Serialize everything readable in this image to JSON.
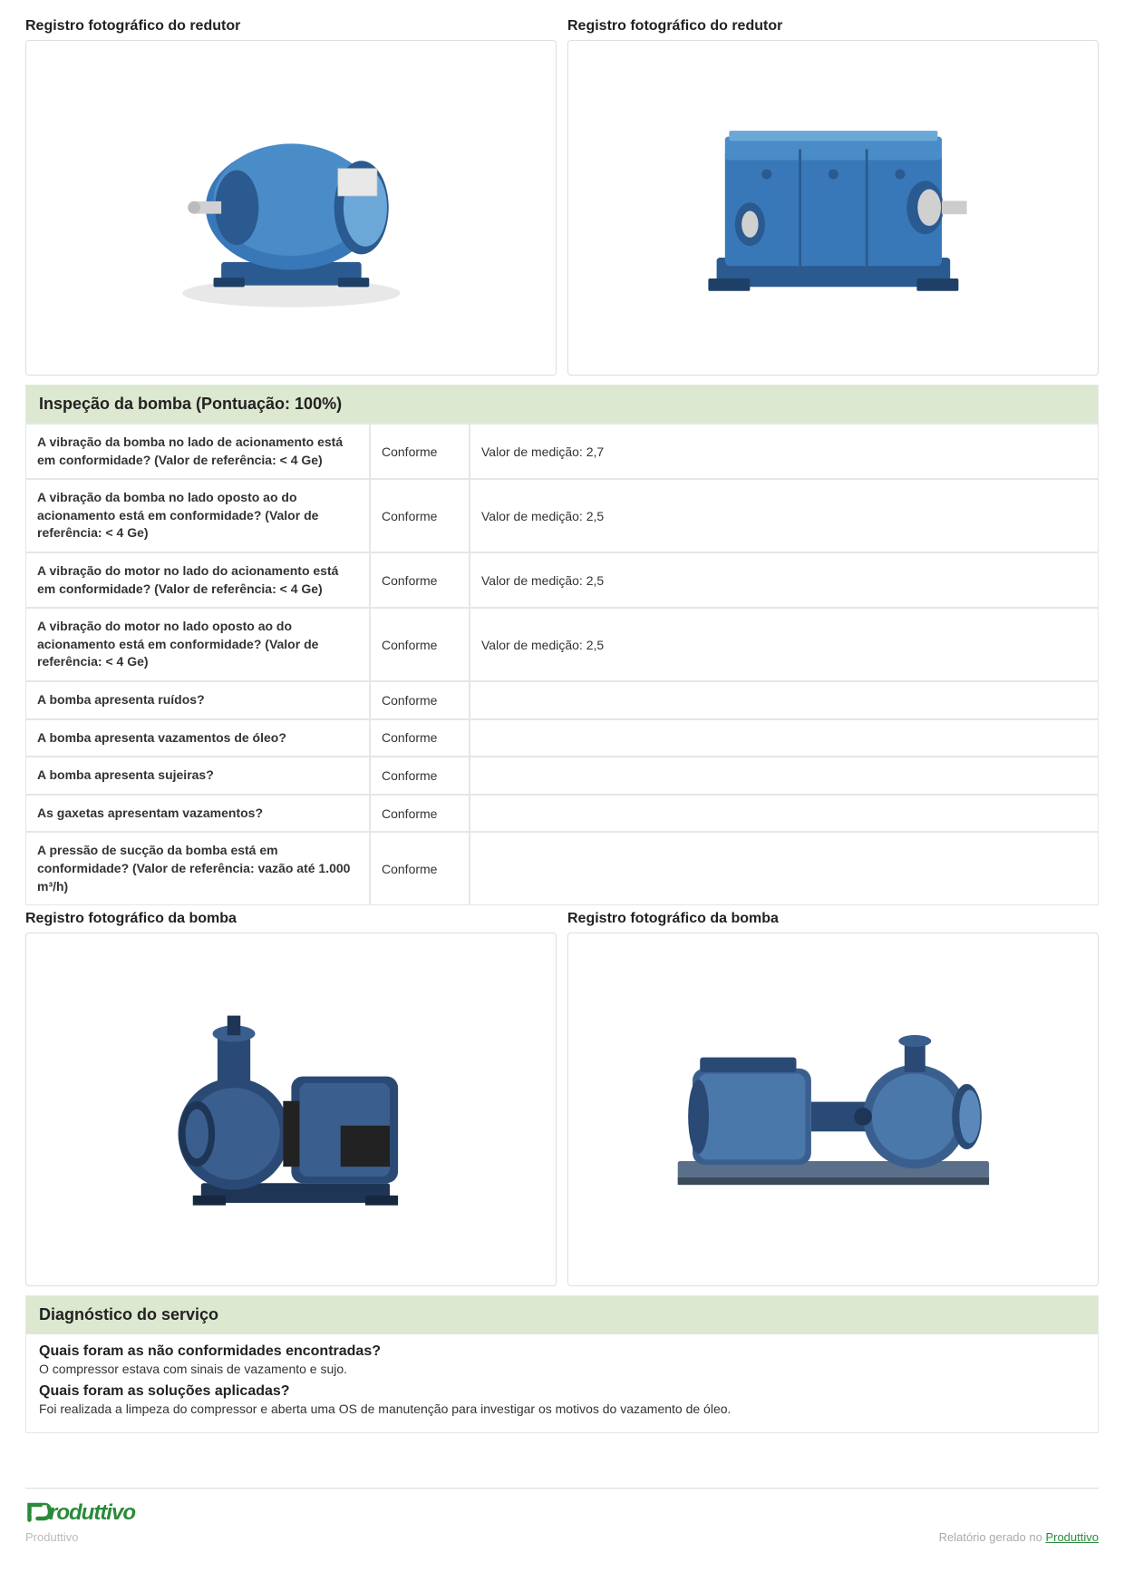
{
  "photos_top": {
    "left_label": "Registro fotográfico do redutor",
    "right_label": "Registro fotográfico do redutor"
  },
  "inspection": {
    "header": "Inspeção da bomba (Pontuação: 100%)",
    "rows": [
      {
        "q": "A vibração da bomba no lado de acionamento está em conformidade? (Valor de referência: < 4 Ge)",
        "status": "Conforme",
        "val": "Valor de medição: 2,7"
      },
      {
        "q": "A vibração da bomba no lado oposto ao do acionamento está em conformidade? (Valor de referência: < 4 Ge)",
        "status": "Conforme",
        "val": "Valor de medição: 2,5"
      },
      {
        "q": "A vibração do motor no lado do acionamento está em conformidade? (Valor de referência: < 4 Ge)",
        "status": "Conforme",
        "val": "Valor de medição: 2,5"
      },
      {
        "q": "A vibração do motor no lado oposto ao do acionamento está em conformidade? (Valor de referência: < 4 Ge)",
        "status": "Conforme",
        "val": "Valor de medição: 2,5"
      },
      {
        "q": "A bomba apresenta ruídos?",
        "status": "Conforme",
        "val": ""
      },
      {
        "q": "A bomba apresenta vazamentos de óleo?",
        "status": "Conforme",
        "val": ""
      },
      {
        "q": "A bomba apresenta sujeiras?",
        "status": "Conforme",
        "val": ""
      },
      {
        "q": "As gaxetas apresentam vazamentos?",
        "status": "Conforme",
        "val": ""
      },
      {
        "q": "A pressão de sucção da bomba está em conformidade? (Valor de referência: vazão até 1.000 m³/h)",
        "status": "Conforme",
        "val": ""
      }
    ]
  },
  "photos_mid": {
    "left_label": "Registro fotográfico da bomba",
    "right_label": "Registro fotográfico da bomba"
  },
  "diagnosis": {
    "header": "Diagnóstico do serviço",
    "q1": "Quais foram as não conformidades encontradas?",
    "a1": "O compressor estava com sinais de vazamento e sujo.",
    "q2": "Quais foram as soluções aplicadas?",
    "a2": "Foi realizada a limpeza do compressor e aberta uma OS de manutenção para investigar os motivos do vazamento de óleo."
  },
  "footer": {
    "brand": "roduttivo",
    "sub": "Produttivo",
    "right_prefix": "Relatório gerado no ",
    "right_link": "Produttivo"
  },
  "colors": {
    "section_bg": "#dce8cf",
    "border": "#e6e6e6",
    "brand_green": "#2a8a3a",
    "equipment_blue_dark": "#2a5a8f",
    "equipment_blue_mid": "#3878b8",
    "equipment_blue_light": "#6ba8d8"
  }
}
